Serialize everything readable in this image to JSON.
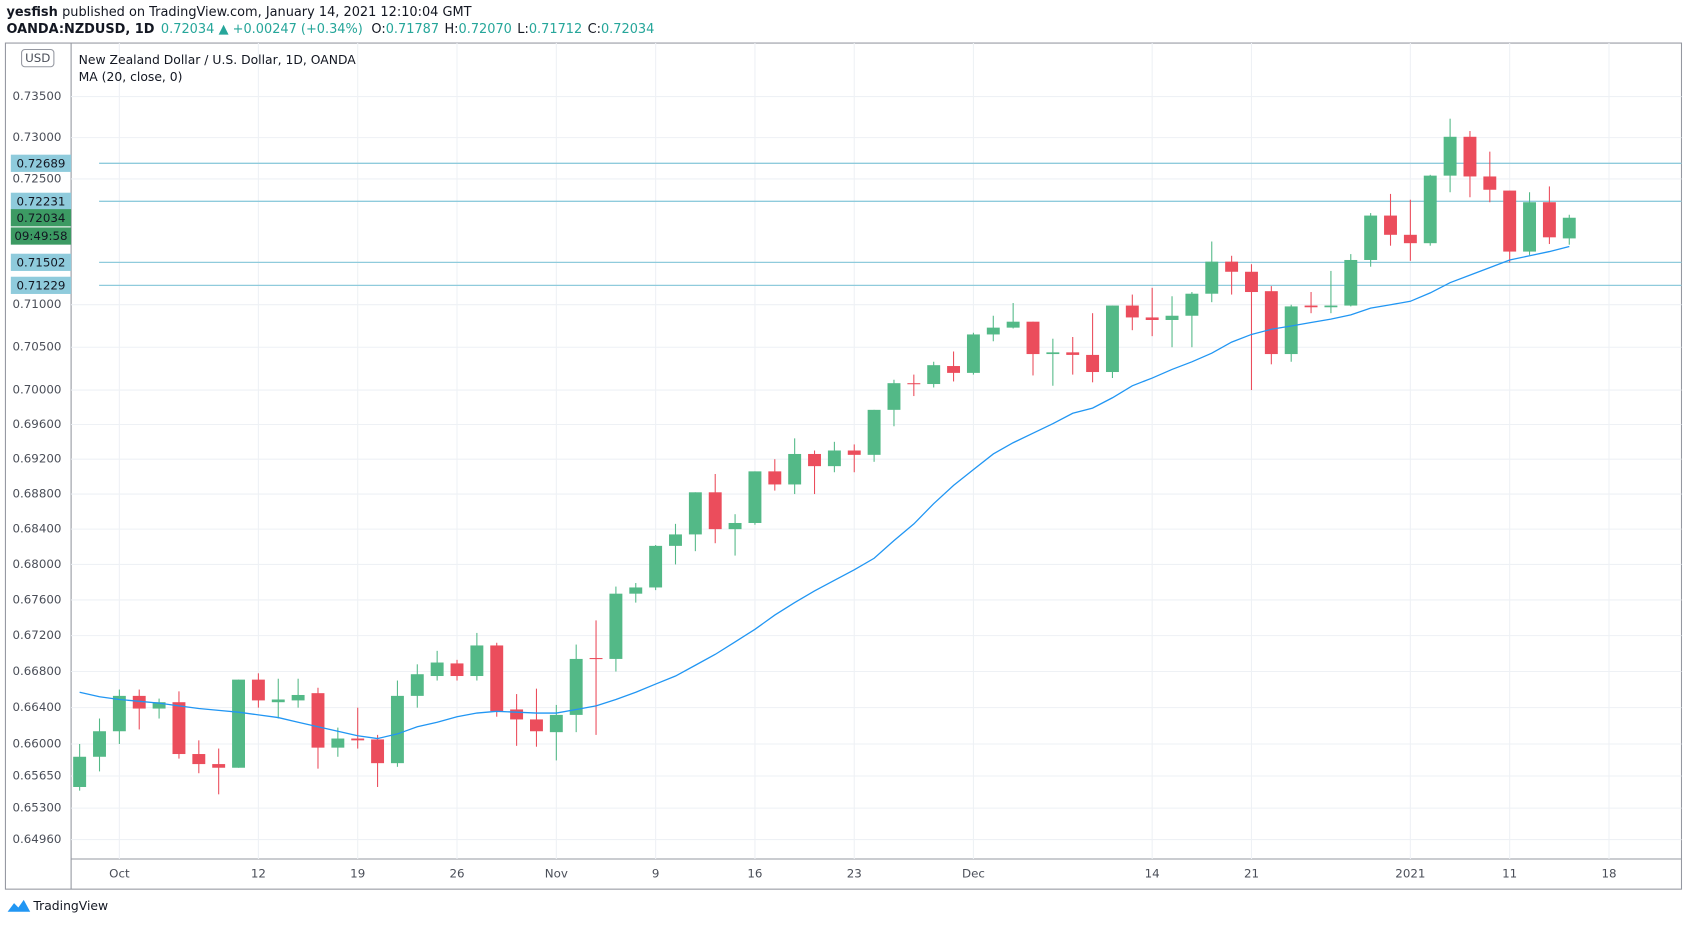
{
  "header": {
    "author": "yesfish",
    "published": "published on TradingView.com, January 14, 2021 12:10:04 GMT",
    "symbol": "OANDA:NZDUSD, 1D",
    "price": "0.72034",
    "change": "▲ +0.00247 (+0.34%)",
    "ohlc": [
      {
        "label": "O:",
        "value": "0.71787"
      },
      {
        "label": "H:",
        "value": "0.72070"
      },
      {
        "label": "L:",
        "value": "0.71712"
      },
      {
        "label": "C:",
        "value": "0.72034"
      }
    ]
  },
  "chart_data": {
    "type": "candlestick",
    "title": "New Zealand Dollar / U.S. Dollar, 1D, OANDA",
    "currency": "USD",
    "log": true,
    "grid": true,
    "up_color": "#53b987",
    "down_color": "#eb4d5c",
    "xlim": [
      -0.43,
      80.65
    ],
    "xticks": [
      {
        "value": 2,
        "label": "Oct"
      },
      {
        "value": 9,
        "label": "12"
      },
      {
        "value": 14,
        "label": "19"
      },
      {
        "value": 19,
        "label": "26"
      },
      {
        "value": 24,
        "label": "Nov"
      },
      {
        "value": 29,
        "label": "9"
      },
      {
        "value": 34,
        "label": "16"
      },
      {
        "value": 39,
        "label": "23"
      },
      {
        "value": 45,
        "label": "Dec"
      },
      {
        "value": 54,
        "label": "14"
      },
      {
        "value": 59,
        "label": "21"
      },
      {
        "value": 67,
        "label": "2021"
      },
      {
        "value": 72,
        "label": "11"
      },
      {
        "value": 77,
        "label": "18"
      }
    ],
    "ylim": [
      0.6475,
      0.7413
    ],
    "yticks": [
      {
        "value": 0.6496,
        "label": "0.64960"
      },
      {
        "value": 0.653,
        "label": "0.65300"
      },
      {
        "value": 0.6565,
        "label": "0.65650"
      },
      {
        "value": 0.66,
        "label": "0.66000"
      },
      {
        "value": 0.664,
        "label": "0.66400"
      },
      {
        "value": 0.668,
        "label": "0.66800"
      },
      {
        "value": 0.672,
        "label": "0.67200"
      },
      {
        "value": 0.676,
        "label": "0.67600"
      },
      {
        "value": 0.68,
        "label": "0.68000"
      },
      {
        "value": 0.684,
        "label": "0.68400"
      },
      {
        "value": 0.688,
        "label": "0.68800"
      },
      {
        "value": 0.692,
        "label": "0.69200"
      },
      {
        "value": 0.696,
        "label": "0.69600"
      },
      {
        "value": 0.7,
        "label": "0.70000"
      },
      {
        "value": 0.705,
        "label": "0.70500"
      },
      {
        "value": 0.71,
        "label": "0.71000"
      },
      {
        "value": 0.725,
        "label": "0.72500"
      },
      {
        "value": 0.73,
        "label": "0.73000"
      },
      {
        "value": 0.735,
        "label": "0.73500"
      }
    ],
    "open": [
      0.6553,
      0.6586,
      0.6614,
      0.6653,
      0.6639,
      0.6646,
      0.6589,
      0.6578,
      0.6574,
      0.6671,
      0.6646,
      0.6648,
      0.6656,
      0.6596,
      0.6606,
      0.6605,
      0.6579,
      0.6653,
      0.6675,
      0.6689,
      0.6675,
      0.6709,
      0.6638,
      0.6627,
      0.6613,
      0.6632,
      0.6695,
      0.6694,
      0.6767,
      0.6774,
      0.6821,
      0.6834,
      0.6882,
      0.684,
      0.6847,
      0.6906,
      0.6891,
      0.6926,
      0.6912,
      0.693,
      0.6925,
      0.6977,
      0.7008,
      0.7007,
      0.7028,
      0.702,
      0.7065,
      0.7073,
      0.708,
      0.7042,
      0.7044,
      0.7041,
      0.7021,
      0.7099,
      0.7085,
      0.7082,
      0.7087,
      0.7113,
      0.7151,
      0.7139,
      0.7116,
      0.7042,
      0.7099,
      0.7097,
      0.7099,
      0.7153,
      0.7206,
      0.7183,
      0.7173,
      0.7254,
      0.7301,
      0.7253,
      0.7236,
      0.7163,
      0.7222,
      0.71787
    ],
    "high": [
      0.66,
      0.6628,
      0.666,
      0.666,
      0.665,
      0.6658,
      0.6604,
      0.6595,
      0.6671,
      0.6678,
      0.6672,
      0.6672,
      0.6662,
      0.6618,
      0.664,
      0.661,
      0.667,
      0.6688,
      0.6703,
      0.6693,
      0.6723,
      0.6712,
      0.6655,
      0.6661,
      0.6643,
      0.671,
      0.6737,
      0.6775,
      0.6779,
      0.6822,
      0.6846,
      0.6882,
      0.6903,
      0.6857,
      0.6906,
      0.692,
      0.6944,
      0.693,
      0.694,
      0.6937,
      0.6977,
      0.7012,
      0.7018,
      0.7033,
      0.7045,
      0.7067,
      0.7087,
      0.7102,
      0.708,
      0.706,
      0.7062,
      0.709,
      0.7099,
      0.7112,
      0.712,
      0.711,
      0.7115,
      0.7175,
      0.7158,
      0.7148,
      0.7122,
      0.71,
      0.7115,
      0.714,
      0.716,
      0.7209,
      0.7232,
      0.7225,
      0.7255,
      0.7323,
      0.7308,
      0.7283,
      0.7236,
      0.7234,
      0.7241,
      0.7207
    ],
    "low": [
      0.6549,
      0.657,
      0.66,
      0.6616,
      0.6628,
      0.6584,
      0.6568,
      0.6545,
      0.6574,
      0.664,
      0.6628,
      0.664,
      0.6573,
      0.6586,
      0.6595,
      0.6553,
      0.6575,
      0.664,
      0.667,
      0.667,
      0.667,
      0.663,
      0.6598,
      0.6597,
      0.6582,
      0.6613,
      0.661,
      0.668,
      0.6757,
      0.6771,
      0.68,
      0.6815,
      0.6824,
      0.681,
      0.6845,
      0.6884,
      0.688,
      0.688,
      0.6905,
      0.6905,
      0.6917,
      0.6958,
      0.6993,
      0.7003,
      0.701,
      0.7018,
      0.7057,
      0.7072,
      0.7017,
      0.7005,
      0.7018,
      0.7009,
      0.7014,
      0.707,
      0.7063,
      0.705,
      0.705,
      0.7103,
      0.7112,
      0.7,
      0.703,
      0.7033,
      0.709,
      0.709,
      0.7098,
      0.7145,
      0.717,
      0.7152,
      0.717,
      0.7234,
      0.7228,
      0.7222,
      0.715,
      0.7159,
      0.7172,
      0.71712
    ],
    "close": [
      0.6586,
      0.6614,
      0.6653,
      0.6639,
      0.6646,
      0.6589,
      0.6578,
      0.6574,
      0.6671,
      0.6648,
      0.6649,
      0.6654,
      0.6596,
      0.6606,
      0.6604,
      0.6579,
      0.6653,
      0.6677,
      0.669,
      0.6675,
      0.6709,
      0.6636,
      0.6627,
      0.6614,
      0.6632,
      0.6694,
      0.6694,
      0.6767,
      0.6774,
      0.6821,
      0.6834,
      0.6882,
      0.684,
      0.6847,
      0.6906,
      0.6891,
      0.6926,
      0.6912,
      0.693,
      0.6925,
      0.6977,
      0.7008,
      0.7007,
      0.7029,
      0.702,
      0.7065,
      0.7073,
      0.708,
      0.7042,
      0.7044,
      0.7041,
      0.7021,
      0.7099,
      0.7085,
      0.7082,
      0.7087,
      0.7113,
      0.7151,
      0.7139,
      0.7115,
      0.7042,
      0.7098,
      0.7097,
      0.7099,
      0.7153,
      0.7206,
      0.7183,
      0.7173,
      0.7254,
      0.7301,
      0.7253,
      0.7237,
      0.7163,
      0.7222,
      0.718,
      0.72034
    ],
    "series": [
      {
        "name": "MA (20, close, 0)",
        "color": "#2196f3",
        "values": [
          0.6657,
          0.6652,
          0.6649,
          0.6647,
          0.6645,
          0.6642,
          0.6639,
          0.6637,
          0.6635,
          0.6632,
          0.6629,
          0.6624,
          0.6619,
          0.6614,
          0.6609,
          0.6606,
          0.6611,
          0.6619,
          0.6624,
          0.663,
          0.6634,
          0.6636,
          0.6635,
          0.6634,
          0.6634,
          0.6638,
          0.6642,
          0.6649,
          0.6657,
          0.6666,
          0.6675,
          0.6687,
          0.6699,
          0.6713,
          0.6727,
          0.6743,
          0.6757,
          0.677,
          0.6782,
          0.6794,
          0.6807,
          0.6827,
          0.6846,
          0.6869,
          0.689,
          0.6908,
          0.6926,
          0.6939,
          0.695,
          0.6961,
          0.6973,
          0.6979,
          0.6991,
          0.7005,
          0.7014,
          0.7024,
          0.7033,
          0.7043,
          0.7056,
          0.7065,
          0.7071,
          0.7075,
          0.7079,
          0.7083,
          0.7088,
          0.7096,
          0.71,
          0.7104,
          0.7114,
          0.7126,
          0.7135,
          0.7144,
          0.7153,
          0.7158,
          0.7163,
          0.7169
        ]
      }
    ],
    "levels_color": "#8fcbdc",
    "levels": [
      {
        "value": 0.72689,
        "label": "0.72689"
      },
      {
        "value": 0.72231,
        "label": "0.72231"
      },
      {
        "value": 0.71502,
        "label": "0.71502"
      },
      {
        "value": 0.71229,
        "label": "0.71229"
      }
    ],
    "last_price": {
      "value": 0.72034,
      "label": "0.72034",
      "color": "#3c9a63"
    },
    "countdown": "09:49:58"
  },
  "footer": {
    "brand": "TradingView"
  }
}
